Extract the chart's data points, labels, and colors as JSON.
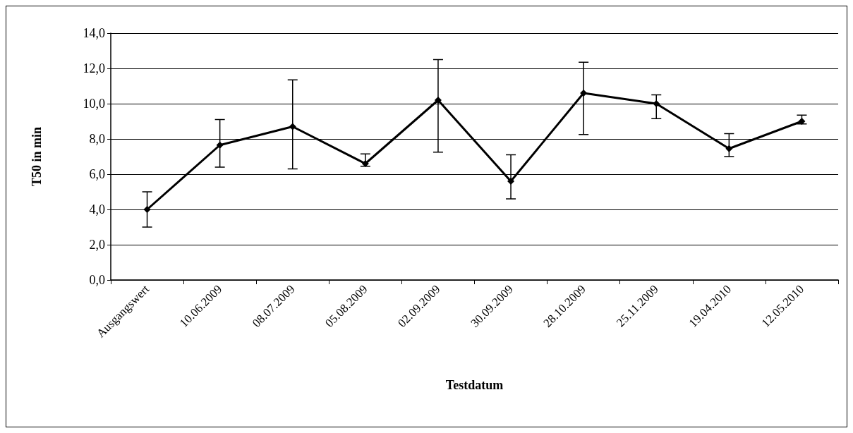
{
  "chart_data": {
    "type": "line",
    "xlabel": "Testdatum",
    "ylabel": "T50 in min",
    "categories": [
      "Ausgangswert",
      "10.06.2009",
      "08.07.2009",
      "05.08.2009",
      "02.09.2009",
      "30.09.2009",
      "28.10.2009",
      "25.11.2009",
      "19.04.2010",
      "12.05.2010"
    ],
    "series": [
      {
        "color": "#000000",
        "values": [
          4.0,
          7.65,
          8.7,
          6.6,
          10.2,
          5.6,
          10.6,
          10.0,
          7.45,
          9.0
        ],
        "errors": [
          [
            3.0,
            5.0
          ],
          [
            6.4,
            9.1
          ],
          [
            6.3,
            11.35
          ],
          [
            6.45,
            7.15
          ],
          [
            7.25,
            12.5
          ],
          [
            4.6,
            7.1
          ],
          [
            8.25,
            12.35
          ],
          [
            9.15,
            10.5
          ],
          [
            7.0,
            8.3
          ],
          [
            8.85,
            9.35
          ]
        ]
      }
    ],
    "ylim": [
      0,
      14
    ],
    "yticks": [
      {
        "value": 0,
        "label": "0,0"
      },
      {
        "value": 2,
        "label": "2,0"
      },
      {
        "value": 4,
        "label": "4,0"
      },
      {
        "value": 6,
        "label": "6,0"
      },
      {
        "value": 8,
        "label": "8,0"
      },
      {
        "value": 10,
        "label": "10,0"
      },
      {
        "value": 12,
        "label": "12,0"
      },
      {
        "value": 14,
        "label": "14,0"
      }
    ],
    "grid": "y",
    "marker": "diamond",
    "line_style": "solid"
  }
}
